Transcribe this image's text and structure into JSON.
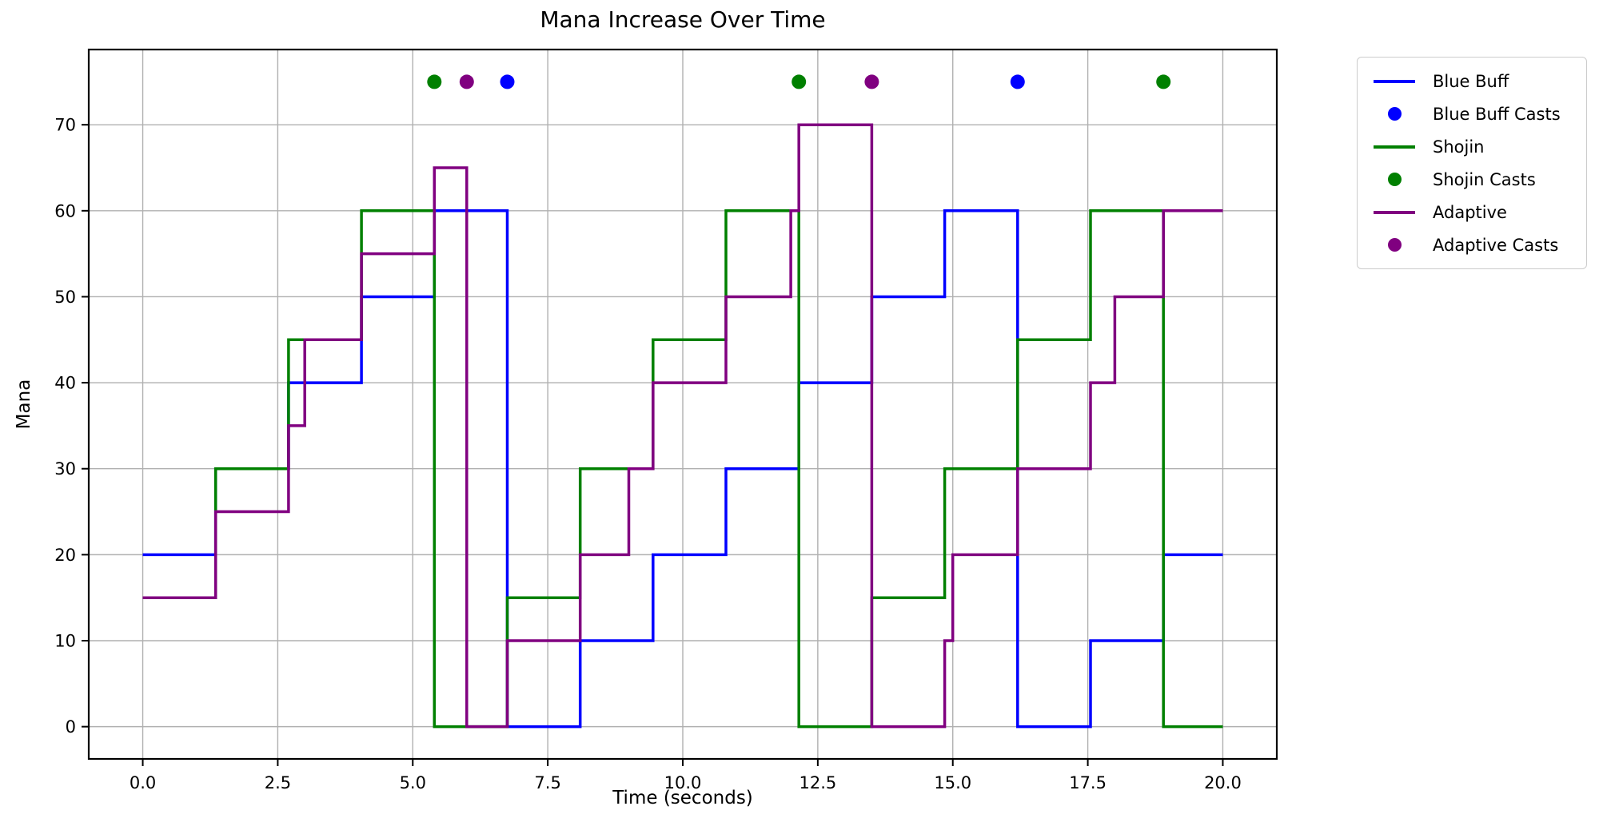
{
  "chart_data": {
    "type": "line",
    "title": "Mana Increase Over Time",
    "xlabel": "Time (seconds)",
    "ylabel": "Mana",
    "grid": true,
    "step_mode": "post",
    "xlim": [
      -1,
      21
    ],
    "ylim": [
      -3.75,
      78.75
    ],
    "x_ticks": [
      0,
      2.5,
      5,
      7.5,
      10,
      12.5,
      15,
      17.5,
      20
    ],
    "x_tick_labels": [
      "0.0",
      "2.5",
      "5.0",
      "7.5",
      "10.0",
      "12.5",
      "15.0",
      "17.5",
      "20.0"
    ],
    "y_ticks": [
      0,
      10,
      20,
      30,
      40,
      50,
      60,
      70
    ],
    "y_tick_labels": [
      "0",
      "10",
      "20",
      "30",
      "40",
      "50",
      "60",
      "70"
    ],
    "grid_color": "#b0b0b0",
    "cast_marker_y": 75,
    "series": [
      {
        "name": "Blue Buff",
        "color": "#0000ff",
        "steps": [
          [
            0,
            20
          ],
          [
            1.35,
            30
          ],
          [
            2.7,
            40
          ],
          [
            4.05,
            50
          ],
          [
            5.4,
            60
          ],
          [
            6.75,
            0
          ],
          [
            8.1,
            10
          ],
          [
            9.45,
            20
          ],
          [
            10.8,
            30
          ],
          [
            12.15,
            40
          ],
          [
            13.5,
            50
          ],
          [
            14.85,
            60
          ],
          [
            16.2,
            0
          ],
          [
            17.55,
            10
          ],
          [
            18.9,
            20
          ],
          [
            20,
            20
          ]
        ]
      },
      {
        "name": "Shojin",
        "color": "#008000",
        "steps": [
          [
            0,
            15
          ],
          [
            1.35,
            30
          ],
          [
            2.7,
            45
          ],
          [
            4.05,
            60
          ],
          [
            5.4,
            0
          ],
          [
            6.75,
            15
          ],
          [
            8.1,
            30
          ],
          [
            9.45,
            45
          ],
          [
            10.8,
            60
          ],
          [
            12.15,
            0
          ],
          [
            13.5,
            15
          ],
          [
            14.85,
            30
          ],
          [
            16.2,
            45
          ],
          [
            17.55,
            60
          ],
          [
            18.9,
            0
          ],
          [
            20,
            0
          ]
        ]
      },
      {
        "name": "Adaptive",
        "color": "#800080",
        "steps": [
          [
            0,
            15
          ],
          [
            1.35,
            25
          ],
          [
            2.7,
            35
          ],
          [
            3,
            45
          ],
          [
            4.05,
            55
          ],
          [
            5.4,
            65
          ],
          [
            6,
            0
          ],
          [
            6.75,
            10
          ],
          [
            8.1,
            20
          ],
          [
            9,
            30
          ],
          [
            9.45,
            40
          ],
          [
            10.8,
            50
          ],
          [
            12,
            60
          ],
          [
            12.15,
            70
          ],
          [
            13.5,
            0
          ],
          [
            14.85,
            10
          ],
          [
            15,
            20
          ],
          [
            16.2,
            30
          ],
          [
            17.55,
            40
          ],
          [
            18,
            50
          ],
          [
            18.9,
            60
          ],
          [
            20,
            60
          ]
        ]
      }
    ],
    "cast_series": [
      {
        "name": "Blue Buff Casts",
        "color": "#0000ff",
        "times": [
          6.75,
          16.2
        ]
      },
      {
        "name": "Shojin Casts",
        "color": "#008000",
        "times": [
          5.4,
          12.15,
          18.9
        ]
      },
      {
        "name": "Adaptive Casts",
        "color": "#800080",
        "times": [
          6.0,
          13.5
        ]
      }
    ],
    "legend": {
      "position": "outside-upper-right",
      "entries": [
        {
          "label": "Blue Buff",
          "color": "#0000ff",
          "sample": "line"
        },
        {
          "label": "Blue Buff Casts",
          "color": "#0000ff",
          "sample": "dot"
        },
        {
          "label": "Shojin",
          "color": "#008000",
          "sample": "line"
        },
        {
          "label": "Shojin Casts",
          "color": "#008000",
          "sample": "dot"
        },
        {
          "label": "Adaptive",
          "color": "#800080",
          "sample": "line"
        },
        {
          "label": "Adaptive Casts",
          "color": "#800080",
          "sample": "dot"
        }
      ]
    }
  }
}
